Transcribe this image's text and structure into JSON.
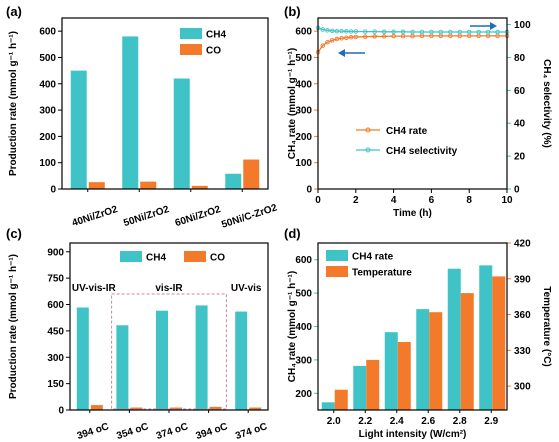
{
  "colors": {
    "cyan": "#3fc3c6",
    "orange": "#f47a2b",
    "axis": "#000000",
    "frame": "#c98aa0"
  },
  "chart_data": [
    {
      "panel_label": "(a)",
      "type": "bar",
      "categories": [
        "40Ni/ZrO2",
        "50Ni/ZrO2",
        "60Ni/ZrO2",
        "50Ni/C-ZrO2"
      ],
      "series": [
        {
          "name": "CH4",
          "values": [
            450,
            580,
            420,
            58
          ]
        },
        {
          "name": "CO",
          "values": [
            26,
            28,
            12,
            112
          ]
        }
      ],
      "ylabel": "Production rate (mmol g⁻¹ h⁻¹)",
      "ylim": [
        0,
        650
      ],
      "yticks": [
        "0",
        "100",
        "200",
        "300",
        "400",
        "500",
        "600"
      ],
      "legend_position": "top-right"
    },
    {
      "panel_label": "(b)",
      "type": "line",
      "x": [
        0,
        0.25,
        0.5,
        0.75,
        1,
        1.25,
        1.5,
        1.75,
        2,
        2.5,
        3,
        3.5,
        4,
        4.5,
        5,
        5.5,
        6,
        6.5,
        7,
        7.5,
        8,
        8.5,
        9,
        9.5,
        10
      ],
      "series": [
        {
          "name": "CH4 rate",
          "axis": "left",
          "values": [
            520,
            545,
            558,
            565,
            570,
            573,
            575,
            577,
            578,
            579,
            580,
            580,
            581,
            581,
            581,
            582,
            582,
            582,
            582,
            582,
            582,
            582,
            582,
            582,
            582
          ]
        },
        {
          "name": "CH4 selectivity",
          "axis": "right",
          "values": [
            98,
            97,
            96.5,
            96.2,
            96,
            96,
            95.9,
            95.8,
            95.8,
            95.7,
            95.7,
            95.6,
            95.6,
            95.6,
            95.5,
            95.5,
            95.5,
            95.5,
            95.5,
            95.5,
            95.5,
            95.5,
            95.5,
            95.5,
            95.5
          ]
        }
      ],
      "xlabel": "Time (h)",
      "ylabel": "CH₄ rate (mmol g⁻¹ h⁻¹)",
      "ylabel_right": "CH₄ selectivity (%)",
      "xlim": [
        0,
        10
      ],
      "ylim": [
        0,
        650
      ],
      "ylim_right": [
        0,
        104
      ],
      "xticks": [
        "0",
        "2",
        "4",
        "6",
        "8",
        "10"
      ],
      "yticks": [
        "0",
        "100",
        "200",
        "300",
        "400",
        "500",
        "600"
      ],
      "yticks_right": [
        "0",
        "20",
        "40",
        "60",
        "80",
        "100"
      ],
      "legend_position": "bottom-center"
    },
    {
      "panel_label": "(c)",
      "type": "bar",
      "categories": [
        "394 oC",
        "354 oC",
        "374 oC",
        "394 oC",
        "374 oC"
      ],
      "series": [
        {
          "name": "CH4",
          "values": [
            583,
            482,
            565,
            595,
            560
          ]
        },
        {
          "name": "CO",
          "values": [
            28,
            14,
            14,
            18,
            14
          ]
        }
      ],
      "ylabel": "Production rate (mmol g⁻¹ h⁻¹)",
      "ylim": [
        0,
        950
      ],
      "yticks": [
        "0",
        "150",
        "300",
        "450",
        "600",
        "750",
        "900"
      ],
      "annotations": [
        "UV-vis-IR",
        "vis-IR",
        "UV-vis"
      ],
      "legend_position": "top-center"
    },
    {
      "panel_label": "(d)",
      "type": "bar",
      "categories": [
        "2.0",
        "2.2",
        "2.4",
        "2.6",
        "2.8",
        "2.9"
      ],
      "series": [
        {
          "name": "CH4 rate",
          "axis": "left",
          "values": [
            173,
            282,
            383,
            452,
            573,
            583
          ]
        },
        {
          "name": "Temperature",
          "axis": "right",
          "values": [
            297,
            322,
            337,
            362,
            378,
            392
          ]
        }
      ],
      "xlabel": "Light intensity (W/cm²)",
      "ylabel": "CH₄ rate (mmol g⁻¹ h⁻¹)",
      "ylabel_right": "Temperature (°C)",
      "ylim": [
        150,
        650
      ],
      "ylim_right": [
        280,
        420
      ],
      "yticks": [
        "200",
        "300",
        "400",
        "500",
        "600"
      ],
      "yticks_right": [
        "300",
        "330",
        "360",
        "390",
        "420"
      ],
      "legend_position": "top-left"
    }
  ]
}
